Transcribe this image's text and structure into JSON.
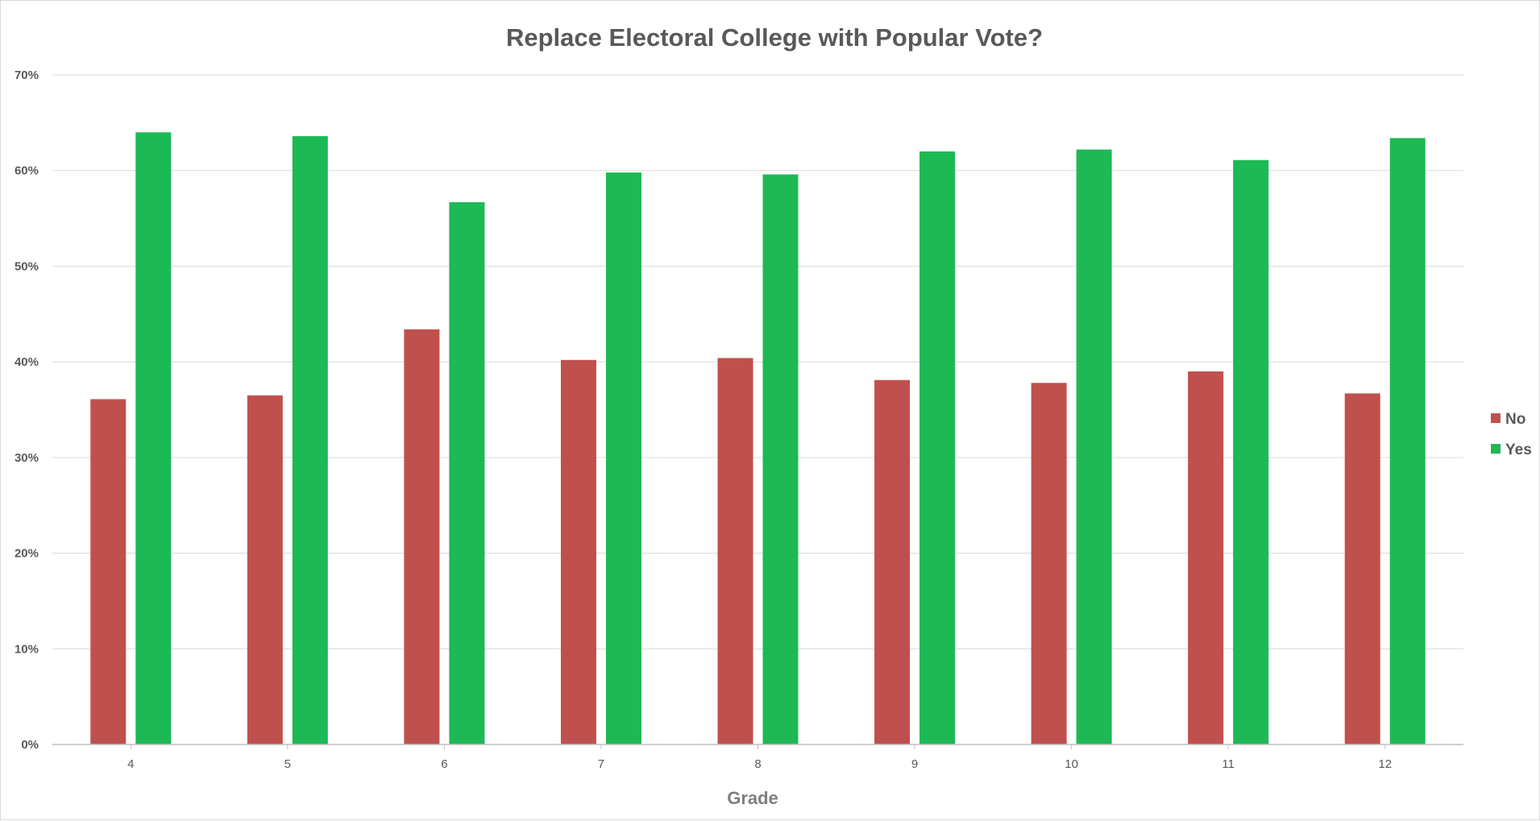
{
  "chart_data": {
    "type": "bar",
    "title": "Replace Electoral College with Popular Vote?",
    "xlabel": "Grade",
    "ylabel": "",
    "categories": [
      "4",
      "5",
      "6",
      "7",
      "8",
      "9",
      "10",
      "11",
      "12"
    ],
    "series": [
      {
        "name": "No",
        "color": "#c0504d",
        "values": [
          36.1,
          36.5,
          43.4,
          40.2,
          40.4,
          38.1,
          37.8,
          39.0,
          36.7
        ]
      },
      {
        "name": "Yes",
        "color": "#1db954",
        "values": [
          64.0,
          63.6,
          56.7,
          59.8,
          59.6,
          62.0,
          62.2,
          61.1,
          63.4
        ]
      }
    ],
    "ylim": [
      0,
      70
    ],
    "yticks": [
      0,
      10,
      20,
      30,
      40,
      50,
      60,
      70
    ],
    "ytick_labels": [
      "0%",
      "10%",
      "20%",
      "30%",
      "40%",
      "50%",
      "60%",
      "70%"
    ],
    "grid": true,
    "legend_position": "right"
  }
}
